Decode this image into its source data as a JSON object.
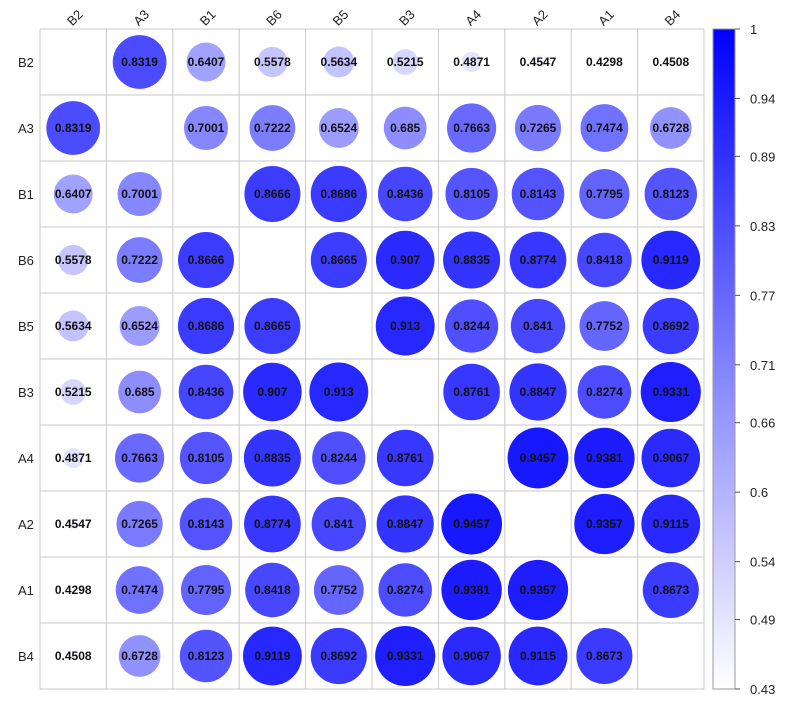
{
  "chart_data": {
    "type": "heatmap",
    "title": "",
    "variables": [
      "B2",
      "A3",
      "B1",
      "B6",
      "B5",
      "B3",
      "A4",
      "A2",
      "A1",
      "B4"
    ],
    "matrix": [
      [
        null,
        0.8319,
        0.6407,
        0.5578,
        0.5634,
        0.5215,
        0.4871,
        0.4547,
        0.4298,
        0.4508
      ],
      [
        0.8319,
        null,
        0.7001,
        0.7222,
        0.6524,
        0.685,
        0.7663,
        0.7265,
        0.7474,
        0.6728
      ],
      [
        0.6407,
        0.7001,
        null,
        0.8666,
        0.8686,
        0.8436,
        0.8105,
        0.8143,
        0.7795,
        0.8123
      ],
      [
        0.5578,
        0.7222,
        0.8666,
        null,
        0.8665,
        0.907,
        0.8835,
        0.8774,
        0.8418,
        0.9119
      ],
      [
        0.5634,
        0.6524,
        0.8686,
        0.8665,
        null,
        0.913,
        0.8244,
        0.841,
        0.7752,
        0.8692
      ],
      [
        0.5215,
        0.685,
        0.8436,
        0.907,
        0.913,
        null,
        0.8761,
        0.8847,
        0.8274,
        0.9331
      ],
      [
        0.4871,
        0.7663,
        0.8105,
        0.8835,
        0.8244,
        0.8761,
        null,
        0.9457,
        0.9381,
        0.9067
      ],
      [
        0.4547,
        0.7265,
        0.8143,
        0.8774,
        0.841,
        0.8847,
        0.9457,
        null,
        0.9357,
        0.9115
      ],
      [
        0.4298,
        0.7474,
        0.7795,
        0.8418,
        0.7752,
        0.8274,
        0.9381,
        0.9357,
        null,
        0.8673
      ],
      [
        0.4508,
        0.6728,
        0.8123,
        0.9119,
        0.8692,
        0.9331,
        0.9067,
        0.9115,
        0.8673,
        null
      ]
    ],
    "value_labels": [
      [
        "",
        "0.8319",
        "0.6407",
        "0.5578",
        "0.5634",
        "0.5215",
        "0.4871",
        "0.4547",
        "0.4298",
        "0.4508"
      ],
      [
        "0.8319",
        "",
        "0.7001",
        "0.7222",
        "0.6524",
        "0.685",
        "0.7663",
        "0.7265",
        "0.7474",
        "0.6728"
      ],
      [
        "0.6407",
        "0.7001",
        "",
        "0.8666",
        "0.8686",
        "0.8436",
        "0.8105",
        "0.8143",
        "0.7795",
        "0.8123"
      ],
      [
        "0.5578",
        "0.7222",
        "0.8666",
        "",
        "0.8665",
        "0.907",
        "0.8835",
        "0.8774",
        "0.8418",
        "0.9119"
      ],
      [
        "0.5634",
        "0.6524",
        "0.8686",
        "0.8665",
        "",
        "0.913",
        "0.8244",
        "0.841",
        "0.7752",
        "0.8692"
      ],
      [
        "0.5215",
        "0.685",
        "0.8436",
        "0.907",
        "0.913",
        "",
        "0.8761",
        "0.8847",
        "0.8274",
        "0.9331"
      ],
      [
        "0.4871",
        "0.7663",
        "0.8105",
        "0.8835",
        "0.8244",
        "0.8761",
        "",
        "0.9457",
        "0.9381",
        "0.9067"
      ],
      [
        "0.4547",
        "0.7265",
        "0.8143",
        "0.8774",
        "0.841",
        "0.8847",
        "0.9457",
        "",
        "0.9357",
        "0.9115"
      ],
      [
        "0.4298",
        "0.7474",
        "0.7795",
        "0.8418",
        "0.7752",
        "0.8274",
        "0.9381",
        "0.9357",
        "",
        "0.8673"
      ],
      [
        "0.4508",
        "0.6728",
        "0.8123",
        "0.9119",
        "0.8692",
        "0.9331",
        "0.9067",
        "0.9115",
        "0.8673",
        ""
      ]
    ],
    "legend": {
      "range": [
        0.43,
        1
      ],
      "ticks": [
        1,
        0.94,
        0.89,
        0.83,
        0.77,
        0.71,
        0.66,
        0.6,
        0.54,
        0.49,
        0.43
      ],
      "tick_labels": [
        "1",
        "0.94",
        "0.89",
        "0.83",
        "0.77",
        "0.71",
        "0.66",
        "0.6",
        "0.54",
        "0.49",
        "0.43"
      ],
      "placement": "right"
    },
    "colors": {
      "low": "#ffffff",
      "high": "#0000ff",
      "grid": "#c8c8c8"
    },
    "marker": "circle",
    "diagonal": "empty"
  }
}
